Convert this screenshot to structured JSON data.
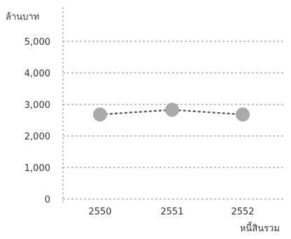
{
  "chart_data": {
    "type": "line",
    "ylabel": "ล้านบาท",
    "xlabel": "หนี้สินรวม",
    "categories": [
      "2550",
      "2551",
      "2552"
    ],
    "series": [
      {
        "name": "",
        "values": [
          2680,
          2830,
          2680
        ]
      }
    ],
    "yticks": [
      "0",
      "1,000",
      "2,000",
      "3,000",
      "4,000",
      "5,000"
    ],
    "ylim": [
      0,
      5000
    ],
    "grid": true,
    "colors": {
      "marker": "#aaaaaa",
      "line": "#555555",
      "grid": "#888888"
    }
  }
}
